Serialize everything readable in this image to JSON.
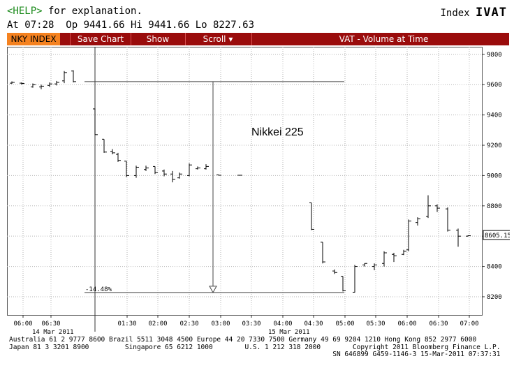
{
  "header": {
    "help_key": "<HELP>",
    "help_text": " for explanation.",
    "quote_line": "At 07:28  Op 9441.66 Hi 9441.66 Lo 8227.63",
    "index_label": "Index ",
    "index_code": "IVAT"
  },
  "toolbar": {
    "security": "NKY INDEX",
    "save_chart": "Save Chart",
    "show": "Show",
    "scroll": "Scroll",
    "scroll_arrow": "▾",
    "title": "VAT - Volume at Time"
  },
  "chart_data": {
    "type": "candlestick",
    "title": "Nikkei 225",
    "y_ticks": [
      "9800",
      "9600",
      "9400",
      "9200",
      "9000",
      "8800",
      "8600",
      "8400",
      "8200"
    ],
    "ylim": [
      8080,
      9850
    ],
    "x_ticks": [
      "06:00",
      "06:30",
      "01:30",
      "02:00",
      "02:30",
      "03:00",
      "03:30",
      "04:00",
      "04:30",
      "05:00",
      "05:30",
      "06:00",
      "06:30",
      "07:00"
    ],
    "date_labels": [
      "14 Mar 2011",
      "15 Mar 2011"
    ],
    "last_price": "8605.15",
    "annotation": {
      "label": "-14.48%",
      "from_level": 9620,
      "to_level": 8228
    },
    "bars": [
      {
        "o": 9610,
        "h": 9622,
        "l": 9605,
        "c": 9615
      },
      {
        "o": 9610,
        "h": 9615,
        "l": 9600,
        "c": 9608
      },
      {
        "o": 9585,
        "h": 9608,
        "l": 9580,
        "c": 9600
      },
      {
        "o": 9585,
        "h": 9600,
        "l": 9570,
        "c": 9590
      },
      {
        "o": 9595,
        "h": 9615,
        "l": 9585,
        "c": 9605
      },
      {
        "o": 9605,
        "h": 9625,
        "l": 9595,
        "c": 9615
      },
      {
        "o": 9625,
        "h": 9690,
        "l": 9610,
        "c": 9680
      },
      {
        "o": 9690,
        "h": 9695,
        "l": 9615,
        "c": 9620
      },
      {
        "o": 9440,
        "h": 9442,
        "l": 9268,
        "c": 9270
      },
      {
        "o": 9240,
        "h": 9240,
        "l": 9150,
        "c": 9155
      },
      {
        "o": 9160,
        "h": 9175,
        "l": 9140,
        "c": 9150
      },
      {
        "o": 9140,
        "h": 9150,
        "l": 9090,
        "c": 9100
      },
      {
        "o": 9095,
        "h": 9095,
        "l": 8990,
        "c": 9000
      },
      {
        "o": 9000,
        "h": 9065,
        "l": 8985,
        "c": 9055
      },
      {
        "o": 9040,
        "h": 9065,
        "l": 9030,
        "c": 9050
      },
      {
        "o": 9060,
        "h": 9060,
        "l": 9010,
        "c": 9020
      },
      {
        "o": 9030,
        "h": 9040,
        "l": 8995,
        "c": 9010
      },
      {
        "o": 9010,
        "h": 9030,
        "l": 8955,
        "c": 8975
      },
      {
        "o": 8985,
        "h": 9020,
        "l": 8980,
        "c": 9010
      },
      {
        "o": 9000,
        "h": 9080,
        "l": 8995,
        "c": 9070
      },
      {
        "o": 9045,
        "h": 9060,
        "l": 9040,
        "c": 9050
      },
      {
        "o": 9045,
        "h": 9075,
        "l": 9040,
        "c": 9060
      },
      {
        "o": 9005,
        "h": 9005,
        "l": 9000,
        "c": 9002
      },
      {
        "o": 9002,
        "h": 9002,
        "l": 9000,
        "c": 9002
      },
      {
        "o": 8820,
        "h": 8820,
        "l": 8640,
        "c": 8645
      },
      {
        "o": 8560,
        "h": 8560,
        "l": 8420,
        "c": 8430
      },
      {
        "o": 8370,
        "h": 8380,
        "l": 8350,
        "c": 8360
      },
      {
        "o": 8335,
        "h": 8335,
        "l": 8235,
        "c": 8240
      },
      {
        "o": 8230,
        "h": 8410,
        "l": 8228,
        "c": 8400
      },
      {
        "o": 8410,
        "h": 8420,
        "l": 8400,
        "c": 8420
      },
      {
        "o": 8400,
        "h": 8420,
        "l": 8375,
        "c": 8410
      },
      {
        "o": 8420,
        "h": 8500,
        "l": 8400,
        "c": 8490
      },
      {
        "o": 8480,
        "h": 8490,
        "l": 8430,
        "c": 8470
      },
      {
        "o": 8480,
        "h": 8510,
        "l": 8475,
        "c": 8500
      },
      {
        "o": 8510,
        "h": 8710,
        "l": 8500,
        "c": 8700
      },
      {
        "o": 8690,
        "h": 8725,
        "l": 8670,
        "c": 8715
      },
      {
        "o": 8730,
        "h": 8870,
        "l": 8720,
        "c": 8800
      },
      {
        "o": 8800,
        "h": 8810,
        "l": 8760,
        "c": 8785
      },
      {
        "o": 8780,
        "h": 8790,
        "l": 8630,
        "c": 8640
      },
      {
        "o": 8640,
        "h": 8650,
        "l": 8530,
        "c": 8600
      },
      {
        "o": 8600,
        "h": 8605,
        "l": 8598,
        "c": 8603
      }
    ]
  },
  "footer": {
    "line1": "Australia 61 2 9777 8600 Brazil 5511 3048 4500 Europe 44 20 7330 7500 Germany 49 69 9204 1210 Hong Kong 852 2977 6000",
    "line2": "Japan 81 3 3201 8900         Singapore 65 6212 1000        U.S. 1 212 318 2000        Copyright 2011 Bloomberg Finance L.P.",
    "line3": "                                                                                 SN 646899 G459-1146-3 15-Mar-2011 07:37:31"
  },
  "colors": {
    "toolbar_bg": "#9a0c0c",
    "security_tab": "#f58220",
    "help_key": "#1a8a1a",
    "grid": "#b5b5b5"
  }
}
